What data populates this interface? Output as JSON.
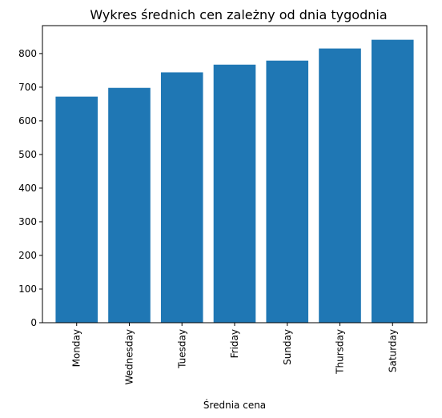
{
  "chart_data": {
    "type": "bar",
    "title": "Wykres średnich cen zależny od dnia tygodnia",
    "xlabel": "Średnia cena",
    "ylabel": "",
    "categories": [
      "Monday",
      "Wednesday",
      "Tuesday",
      "Friday",
      "Sunday",
      "Thursday",
      "Saturday"
    ],
    "values": [
      672,
      698,
      744,
      767,
      779,
      815,
      841
    ],
    "ylim": [
      0,
      883
    ],
    "yticks": [
      0,
      100,
      200,
      300,
      400,
      500,
      600,
      700,
      800
    ],
    "bar_color": "#1f77b4",
    "grid": false,
    "legend": false
  }
}
